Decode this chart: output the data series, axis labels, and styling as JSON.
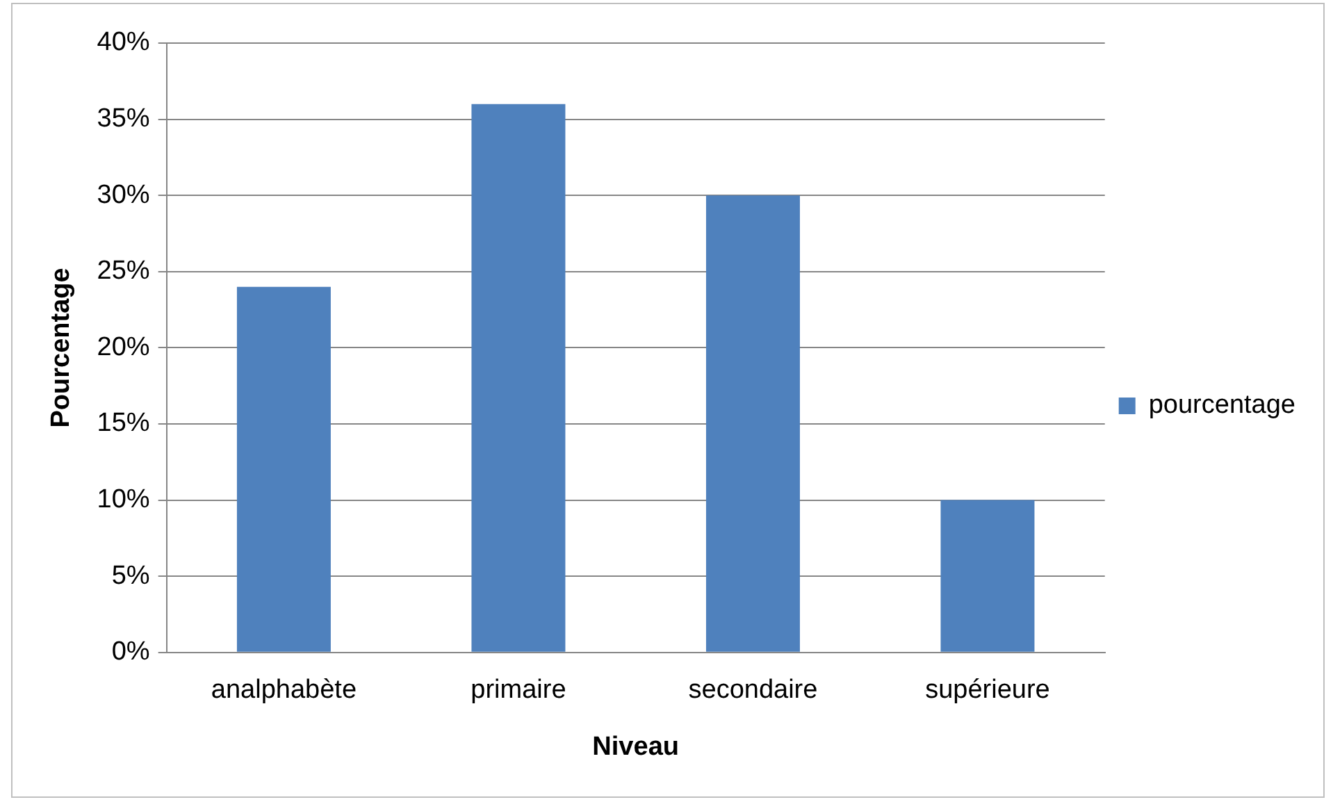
{
  "chart_data": {
    "type": "bar",
    "xlabel": "Niveau",
    "ylabel": "Pourcentage",
    "categories": [
      "analphabète",
      "primaire",
      "secondaire",
      "supérieure"
    ],
    "series": [
      {
        "name": "pourcentage",
        "color": "#4f81bd",
        "values": [
          24,
          36,
          30,
          10
        ]
      }
    ],
    "ylim": [
      0,
      40
    ],
    "yticks": [
      {
        "value": 0,
        "label": "0%"
      },
      {
        "value": 5,
        "label": "5%"
      },
      {
        "value": 10,
        "label": "10%"
      },
      {
        "value": 15,
        "label": "15%"
      },
      {
        "value": 20,
        "label": "20%"
      },
      {
        "value": 25,
        "label": "25%"
      },
      {
        "value": 30,
        "label": "30%"
      },
      {
        "value": 35,
        "label": "35%"
      },
      {
        "value": 40,
        "label": "40%"
      }
    ],
    "grid": "y",
    "legend": "right"
  }
}
